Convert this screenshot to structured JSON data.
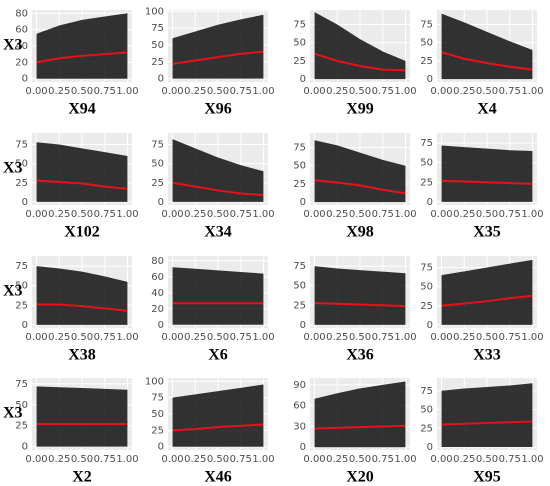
{
  "chart_data": [
    {
      "type": "line",
      "x_label": "X94",
      "y_label": "X3",
      "x": [
        0,
        0.25,
        0.5,
        0.75,
        1
      ],
      "xlim": [
        -0.05,
        1.05
      ],
      "ylim": [
        -4,
        84
      ],
      "yticks": [
        0,
        20,
        40,
        60,
        80
      ],
      "xticks": [
        {
          "value": 0,
          "label": "0.00"
        },
        {
          "value": 0.25,
          "label": "0.25"
        },
        {
          "value": 0.5,
          "label": "0.50"
        },
        {
          "value": 0.75,
          "label": "0.75"
        },
        {
          "value": 1,
          "label": "1.00"
        }
      ],
      "grid": true,
      "ice_low": [
        0,
        0,
        0,
        0,
        0
      ],
      "ice_high": [
        55,
        65,
        72,
        76,
        80
      ],
      "series": [
        {
          "color": "#e8101a",
          "values": [
            20,
            25,
            28,
            30,
            32
          ]
        }
      ]
    },
    {
      "type": "line",
      "x_label": "X96",
      "x": [
        0,
        0.25,
        0.5,
        0.75,
        1
      ],
      "xlim": [
        -0.05,
        1.05
      ],
      "ylim": [
        -5,
        102
      ],
      "yticks": [
        0,
        25,
        50,
        75,
        100
      ],
      "xticks": [
        {
          "value": 0,
          "label": "0.00"
        },
        {
          "value": 0.25,
          "label": "0.25"
        },
        {
          "value": 0.5,
          "label": "0.50"
        },
        {
          "value": 0.75,
          "label": "0.75"
        },
        {
          "value": 1,
          "label": "1.00"
        }
      ],
      "grid": true,
      "ice_low": [
        0,
        0,
        0,
        0,
        0
      ],
      "ice_high": [
        60,
        70,
        80,
        88,
        95
      ],
      "series": [
        {
          "color": "#e8101a",
          "values": [
            22,
            27,
            32,
            37,
            40
          ]
        }
      ]
    },
    {
      "type": "line",
      "x_label": "X99",
      "x": [
        0,
        0.25,
        0.5,
        0.75,
        1
      ],
      "xlim": [
        -0.05,
        1.05
      ],
      "ylim": [
        -4,
        95
      ],
      "yticks": [
        0,
        25,
        50,
        75
      ],
      "xticks": [
        {
          "value": 0,
          "label": "0.00"
        },
        {
          "value": 0.25,
          "label": "0.25"
        },
        {
          "value": 0.5,
          "label": "0.50"
        },
        {
          "value": 0.75,
          "label": "0.75"
        },
        {
          "value": 1,
          "label": "1.00"
        }
      ],
      "grid": true,
      "ice_low": [
        0,
        0,
        0,
        0,
        0
      ],
      "ice_high": [
        92,
        75,
        55,
        38,
        25
      ],
      "series": [
        {
          "color": "#e8101a",
          "values": [
            35,
            25,
            18,
            13,
            12
          ]
        }
      ]
    },
    {
      "type": "line",
      "x_label": "X4",
      "x": [
        0,
        0.25,
        0.5,
        0.75,
        1
      ],
      "xlim": [
        -0.05,
        1.05
      ],
      "ylim": [
        -4,
        95
      ],
      "yticks": [
        0,
        25,
        50,
        75
      ],
      "xticks": [
        {
          "value": 0,
          "label": "0.00"
        },
        {
          "value": 0.25,
          "label": "0.25"
        },
        {
          "value": 0.5,
          "label": "0.50"
        },
        {
          "value": 0.75,
          "label": "0.75"
        },
        {
          "value": 1,
          "label": "1.00"
        }
      ],
      "grid": true,
      "ice_low": [
        0,
        0,
        0,
        0,
        0
      ],
      "ice_high": [
        90,
        78,
        65,
        52,
        40
      ],
      "series": [
        {
          "color": "#e8101a",
          "values": [
            37,
            28,
            22,
            17,
            13
          ]
        }
      ]
    },
    {
      "type": "line",
      "x_label": "X102",
      "y_label": "X3",
      "x": [
        0,
        0.25,
        0.5,
        0.75,
        1
      ],
      "xlim": [
        -0.05,
        1.05
      ],
      "ylim": [
        -4,
        90
      ],
      "yticks": [
        0,
        25,
        50,
        75
      ],
      "xticks": [
        {
          "value": 0,
          "label": "0.00"
        },
        {
          "value": 0.25,
          "label": "0.25"
        },
        {
          "value": 0.5,
          "label": "0.50"
        },
        {
          "value": 0.75,
          "label": "0.75"
        },
        {
          "value": 1,
          "label": "1.00"
        }
      ],
      "grid": true,
      "ice_low": [
        0,
        0,
        0,
        0,
        0
      ],
      "ice_high": [
        78,
        75,
        70,
        65,
        60
      ],
      "series": [
        {
          "color": "#e8101a",
          "values": [
            28,
            26,
            24,
            20,
            17
          ]
        }
      ]
    },
    {
      "type": "line",
      "x_label": "X34",
      "x": [
        0,
        0.25,
        0.5,
        0.75,
        1
      ],
      "xlim": [
        -0.05,
        1.05
      ],
      "ylim": [
        -4,
        90
      ],
      "yticks": [
        0,
        25,
        50,
        75
      ],
      "xticks": [
        {
          "value": 0,
          "label": "0.00"
        },
        {
          "value": 0.25,
          "label": "0.25"
        },
        {
          "value": 0.5,
          "label": "0.50"
        },
        {
          "value": 0.75,
          "label": "0.75"
        },
        {
          "value": 1,
          "label": "1.00"
        }
      ],
      "grid": true,
      "ice_low": [
        0,
        0,
        0,
        0,
        0
      ],
      "ice_high": [
        82,
        70,
        58,
        48,
        40
      ],
      "series": [
        {
          "color": "#e8101a",
          "values": [
            25,
            20,
            15,
            11,
            9
          ]
        }
      ]
    },
    {
      "type": "line",
      "x_label": "X98",
      "x": [
        0,
        0.25,
        0.5,
        0.75,
        1
      ],
      "xlim": [
        -0.05,
        1.05
      ],
      "ylim": [
        -4,
        95
      ],
      "yticks": [
        0,
        25,
        50,
        75
      ],
      "xticks": [
        {
          "value": 0,
          "label": "0.00"
        },
        {
          "value": 0.25,
          "label": "0.25"
        },
        {
          "value": 0.5,
          "label": "0.50"
        },
        {
          "value": 0.75,
          "label": "0.75"
        },
        {
          "value": 1,
          "label": "1.00"
        }
      ],
      "grid": true,
      "ice_low": [
        0,
        0,
        0,
        0,
        0
      ],
      "ice_high": [
        85,
        78,
        68,
        58,
        50
      ],
      "series": [
        {
          "color": "#e8101a",
          "values": [
            30,
            27,
            23,
            17,
            12
          ]
        }
      ]
    },
    {
      "type": "line",
      "x_label": "X35",
      "x": [
        0,
        0.25,
        0.5,
        0.75,
        1
      ],
      "xlim": [
        -0.05,
        1.05
      ],
      "ylim": [
        -4,
        88
      ],
      "yticks": [
        0,
        25,
        50,
        75
      ],
      "xticks": [
        {
          "value": 0,
          "label": "0.00"
        },
        {
          "value": 0.25,
          "label": "0.25"
        },
        {
          "value": 0.5,
          "label": "0.50"
        },
        {
          "value": 0.75,
          "label": "0.75"
        },
        {
          "value": 1,
          "label": "1.00"
        }
      ],
      "grid": true,
      "ice_low": [
        0,
        0,
        0,
        0,
        0
      ],
      "ice_high": [
        72,
        70,
        68,
        66,
        65
      ],
      "series": [
        {
          "color": "#e8101a",
          "values": [
            27,
            26,
            25,
            24,
            23
          ]
        }
      ]
    },
    {
      "type": "line",
      "x_label": "X38",
      "y_label": "X3",
      "x": [
        0,
        0.25,
        0.5,
        0.75,
        1
      ],
      "xlim": [
        -0.05,
        1.05
      ],
      "ylim": [
        -4,
        88
      ],
      "yticks": [
        0,
        25,
        50,
        75
      ],
      "xticks": [
        {
          "value": 0,
          "label": "0.00"
        },
        {
          "value": 0.25,
          "label": "0.25"
        },
        {
          "value": 0.5,
          "label": "0.50"
        },
        {
          "value": 0.75,
          "label": "0.75"
        },
        {
          "value": 1,
          "label": "1.00"
        }
      ],
      "grid": true,
      "ice_low": [
        0,
        0,
        0,
        0,
        0
      ],
      "ice_high": [
        75,
        72,
        68,
        62,
        55
      ],
      "series": [
        {
          "color": "#e8101a",
          "values": [
            26,
            26,
            24,
            21,
            18
          ]
        }
      ]
    },
    {
      "type": "line",
      "x_label": "X6",
      "x": [
        0,
        0.25,
        0.5,
        0.75,
        1
      ],
      "xlim": [
        -0.05,
        1.05
      ],
      "ylim": [
        -4,
        86
      ],
      "yticks": [
        0,
        20,
        40,
        60,
        80
      ],
      "xticks": [
        {
          "value": 0,
          "label": "0.00"
        },
        {
          "value": 0.25,
          "label": "0.25"
        },
        {
          "value": 0.5,
          "label": "0.50"
        },
        {
          "value": 0.75,
          "label": "0.75"
        },
        {
          "value": 1,
          "label": "1.00"
        }
      ],
      "grid": true,
      "ice_low": [
        0,
        0,
        0,
        0,
        0
      ],
      "ice_high": [
        72,
        70,
        68,
        66,
        64
      ],
      "series": [
        {
          "color": "#e8101a",
          "values": [
            27,
            27,
            27,
            27,
            27
          ]
        }
      ]
    },
    {
      "type": "line",
      "x_label": "X36",
      "x": [
        0,
        0.25,
        0.5,
        0.75,
        1
      ],
      "xlim": [
        -0.05,
        1.05
      ],
      "ylim": [
        -4,
        88
      ],
      "yticks": [
        0,
        25,
        50,
        75
      ],
      "xticks": [
        {
          "value": 0,
          "label": "0.00"
        },
        {
          "value": 0.25,
          "label": "0.25"
        },
        {
          "value": 0.5,
          "label": "0.50"
        },
        {
          "value": 0.75,
          "label": "0.75"
        },
        {
          "value": 1,
          "label": "1.00"
        }
      ],
      "grid": true,
      "ice_low": [
        0,
        0,
        0,
        0,
        0
      ],
      "ice_high": [
        75,
        72,
        70,
        68,
        66
      ],
      "series": [
        {
          "color": "#e8101a",
          "values": [
            28,
            27,
            26,
            25,
            24
          ]
        }
      ]
    },
    {
      "type": "line",
      "x_label": "X33",
      "x": [
        0,
        0.25,
        0.5,
        0.75,
        1
      ],
      "xlim": [
        -0.05,
        1.05
      ],
      "ylim": [
        -4,
        90
      ],
      "yticks": [
        0,
        25,
        50,
        75
      ],
      "xticks": [
        {
          "value": 0,
          "label": "0.00"
        },
        {
          "value": 0.25,
          "label": "0.25"
        },
        {
          "value": 0.5,
          "label": "0.50"
        },
        {
          "value": 0.75,
          "label": "0.75"
        },
        {
          "value": 1,
          "label": "1.00"
        }
      ],
      "grid": true,
      "ice_low": [
        0,
        0,
        0,
        0,
        0
      ],
      "ice_high": [
        65,
        70,
        75,
        80,
        85
      ],
      "series": [
        {
          "color": "#e8101a",
          "values": [
            25,
            28,
            31,
            35,
            38
          ]
        }
      ]
    },
    {
      "type": "line",
      "x_label": "X2",
      "y_label": "X3",
      "x": [
        0,
        0.25,
        0.5,
        0.75,
        1
      ],
      "xlim": [
        -0.05,
        1.05
      ],
      "ylim": [
        -4,
        82
      ],
      "yticks": [
        0,
        25,
        50,
        75
      ],
      "xticks": [
        {
          "value": 0,
          "label": "0.00"
        },
        {
          "value": 0.25,
          "label": "0.25"
        },
        {
          "value": 0.5,
          "label": "0.50"
        },
        {
          "value": 0.75,
          "label": "0.75"
        },
        {
          "value": 1,
          "label": "1.00"
        }
      ],
      "grid": true,
      "ice_low": [
        0,
        0,
        0,
        0,
        0
      ],
      "ice_high": [
        72,
        71,
        70,
        69,
        68
      ],
      "series": [
        {
          "color": "#e8101a",
          "values": [
            27,
            27,
            27,
            27,
            27
          ]
        }
      ]
    },
    {
      "type": "line",
      "x_label": "X46",
      "x": [
        0,
        0.25,
        0.5,
        0.75,
        1
      ],
      "xlim": [
        -0.05,
        1.05
      ],
      "ylim": [
        -5,
        105
      ],
      "yticks": [
        0,
        25,
        50,
        75,
        100
      ],
      "xticks": [
        {
          "value": 0,
          "label": "0.00"
        },
        {
          "value": 0.25,
          "label": "0.25"
        },
        {
          "value": 0.5,
          "label": "0.50"
        },
        {
          "value": 0.75,
          "label": "0.75"
        },
        {
          "value": 1,
          "label": "1.00"
        }
      ],
      "grid": true,
      "ice_low": [
        0,
        0,
        0,
        0,
        0
      ],
      "ice_high": [
        75,
        80,
        85,
        90,
        95
      ],
      "series": [
        {
          "color": "#e8101a",
          "values": [
            25,
            27,
            30,
            32,
            34
          ]
        }
      ]
    },
    {
      "type": "line",
      "x_label": "X20",
      "x": [
        0,
        0.25,
        0.5,
        0.75,
        1
      ],
      "xlim": [
        -0.05,
        1.05
      ],
      "ylim": [
        -4,
        100
      ],
      "yticks": [
        0,
        30,
        60,
        90
      ],
      "xticks": [
        {
          "value": 0,
          "label": "0.00"
        },
        {
          "value": 0.25,
          "label": "0.25"
        },
        {
          "value": 0.5,
          "label": "0.50"
        },
        {
          "value": 0.75,
          "label": "0.75"
        },
        {
          "value": 1,
          "label": "1.00"
        }
      ],
      "grid": true,
      "ice_low": [
        0,
        0,
        0,
        0,
        0
      ],
      "ice_high": [
        70,
        78,
        85,
        90,
        95
      ],
      "series": [
        {
          "color": "#e8101a",
          "values": [
            27,
            28,
            29,
            30,
            31
          ]
        }
      ]
    },
    {
      "type": "line",
      "x_label": "X95",
      "x": [
        0,
        0.25,
        0.5,
        0.75,
        1
      ],
      "xlim": [
        -0.05,
        1.05
      ],
      "ylim": [
        -4,
        92
      ],
      "yticks": [
        0,
        25,
        50,
        75
      ],
      "xticks": [
        {
          "value": 0,
          "label": "0.00"
        },
        {
          "value": 0.25,
          "label": "0.25"
        },
        {
          "value": 0.5,
          "label": "0.50"
        },
        {
          "value": 0.75,
          "label": "0.75"
        },
        {
          "value": 1,
          "label": "1.00"
        }
      ],
      "grid": true,
      "ice_low": [
        0,
        0,
        0,
        0,
        0
      ],
      "ice_high": [
        75,
        78,
        80,
        82,
        85
      ],
      "series": [
        {
          "color": "#e8101a",
          "values": [
            30,
            31,
            32,
            33,
            34
          ]
        }
      ]
    }
  ]
}
